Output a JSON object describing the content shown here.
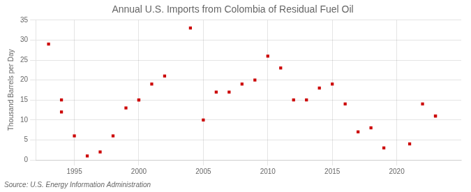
{
  "chart_data": {
    "type": "scatter",
    "title": "Annual U.S. Imports from Colombia of Residual Fuel Oil",
    "ylabel": "Thousand Barrels per Day",
    "source": "Source: U.S. Energy Information Administration",
    "x": [
      1993,
      1994,
      1994,
      1995,
      1996,
      1997,
      1998,
      1999,
      2000,
      2000,
      2001,
      2002,
      2004,
      2005,
      2006,
      2007,
      2008,
      2009,
      2010,
      2011,
      2012,
      2013,
      2014,
      2015,
      2016,
      2017,
      2018,
      2019,
      2021,
      2022,
      2023,
      2023
    ],
    "values": [
      29,
      15,
      12,
      6,
      1,
      2,
      6,
      13,
      15,
      15,
      19,
      21,
      33,
      10,
      17,
      17,
      19,
      20,
      26,
      23,
      15,
      15,
      18,
      19,
      14,
      7,
      8,
      3,
      4,
      14,
      11,
      11
    ],
    "color": "#cc0000",
    "marker": "square",
    "xlim": [
      1992.0,
      2025.0
    ],
    "ylim": [
      0,
      35
    ],
    "xticks": [
      1995,
      2000,
      2005,
      2010,
      2015,
      2020
    ],
    "yticks": [
      0,
      5,
      10,
      15,
      20,
      25,
      30,
      35
    ],
    "grid": true
  }
}
